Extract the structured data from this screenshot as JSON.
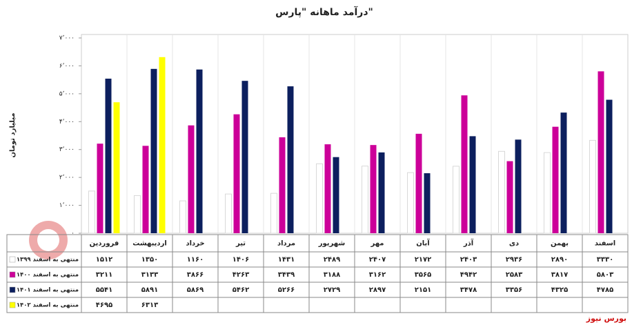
{
  "chart_data": {
    "type": "bar",
    "title": "درآمد ماهانه \"پارس\"",
    "y_label": "میلیارد تومان",
    "categories": [
      "فروردین",
      "اردیبهشت",
      "خرداد",
      "تیر",
      "مرداد",
      "شهریور",
      "مهر",
      "آبان",
      "آذر",
      "دی",
      "بهمن",
      "اسفند"
    ],
    "series": [
      {
        "name": "منتهی به اسفند ۱۳۹۹",
        "color": "#ffffff",
        "values": [
          1512,
          1350,
          1160,
          1406,
          1431,
          2489,
          2407,
          2172,
          2403,
          2936,
          2890,
          3330
        ],
        "value_labels": [
          "۱۵۱۲",
          "۱۳۵۰",
          "۱۱۶۰",
          "۱۴۰۶",
          "۱۴۳۱",
          "۲۴۸۹",
          "۲۴۰۷",
          "۲۱۷۲",
          "۲۴۰۳",
          "۲۹۳۶",
          "۲۸۹۰",
          "۳۳۳۰"
        ]
      },
      {
        "name": "منتهی به اسفند ۱۴۰۰",
        "color": "#cc0099",
        "values": [
          3211,
          3133,
          3866,
          4263,
          3439,
          3188,
          3162,
          3565,
          4942,
          2583,
          3817,
          5803
        ],
        "value_labels": [
          "۳۲۱۱",
          "۳۱۳۳",
          "۳۸۶۶",
          "۴۲۶۳",
          "۳۴۳۹",
          "۳۱۸۸",
          "۳۱۶۲",
          "۳۵۶۵",
          "۴۹۴۲",
          "۲۵۸۳",
          "۳۸۱۷",
          "۵۸۰۳"
        ]
      },
      {
        "name": "منتهی به اسفند ۱۴۰۱",
        "color": "#0c1f5e",
        "values": [
          5541,
          5891,
          5869,
          5462,
          5266,
          2729,
          2897,
          2151,
          3478,
          3356,
          4325,
          4785
        ],
        "value_labels": [
          "۵۵۴۱",
          "۵۸۹۱",
          "۵۸۶۹",
          "۵۴۶۲",
          "۵۲۶۶",
          "۲۷۲۹",
          "۲۸۹۷",
          "۲۱۵۱",
          "۳۴۷۸",
          "۳۳۵۶",
          "۴۳۲۵",
          "۴۷۸۵"
        ]
      },
      {
        "name": "منتهی به اسفند ۱۴۰۲",
        "color": "#ffff00",
        "values": [
          4695,
          6313,
          null,
          null,
          null,
          null,
          null,
          null,
          null,
          null,
          null,
          null
        ],
        "value_labels": [
          "۴۶۹۵",
          "۶۳۱۳",
          null,
          null,
          null,
          null,
          null,
          null,
          null,
          null,
          null,
          null
        ]
      }
    ],
    "ylim": [
      0,
      7000
    ],
    "yticks": [
      {
        "value": 0,
        "label": "۰"
      },
      {
        "value": 1000,
        "label": "۱٬۰۰۰"
      },
      {
        "value": 2000,
        "label": "۲٬۰۰۰"
      },
      {
        "value": 3000,
        "label": "۳٬۰۰۰"
      },
      {
        "value": 4000,
        "label": "۴٬۰۰۰"
      },
      {
        "value": 5000,
        "label": "۵٬۰۰۰"
      },
      {
        "value": 6000,
        "label": "۶٬۰۰۰"
      },
      {
        "value": 7000,
        "label": "۷٬۰۰۰"
      }
    ],
    "source": "بورس نیوز"
  }
}
